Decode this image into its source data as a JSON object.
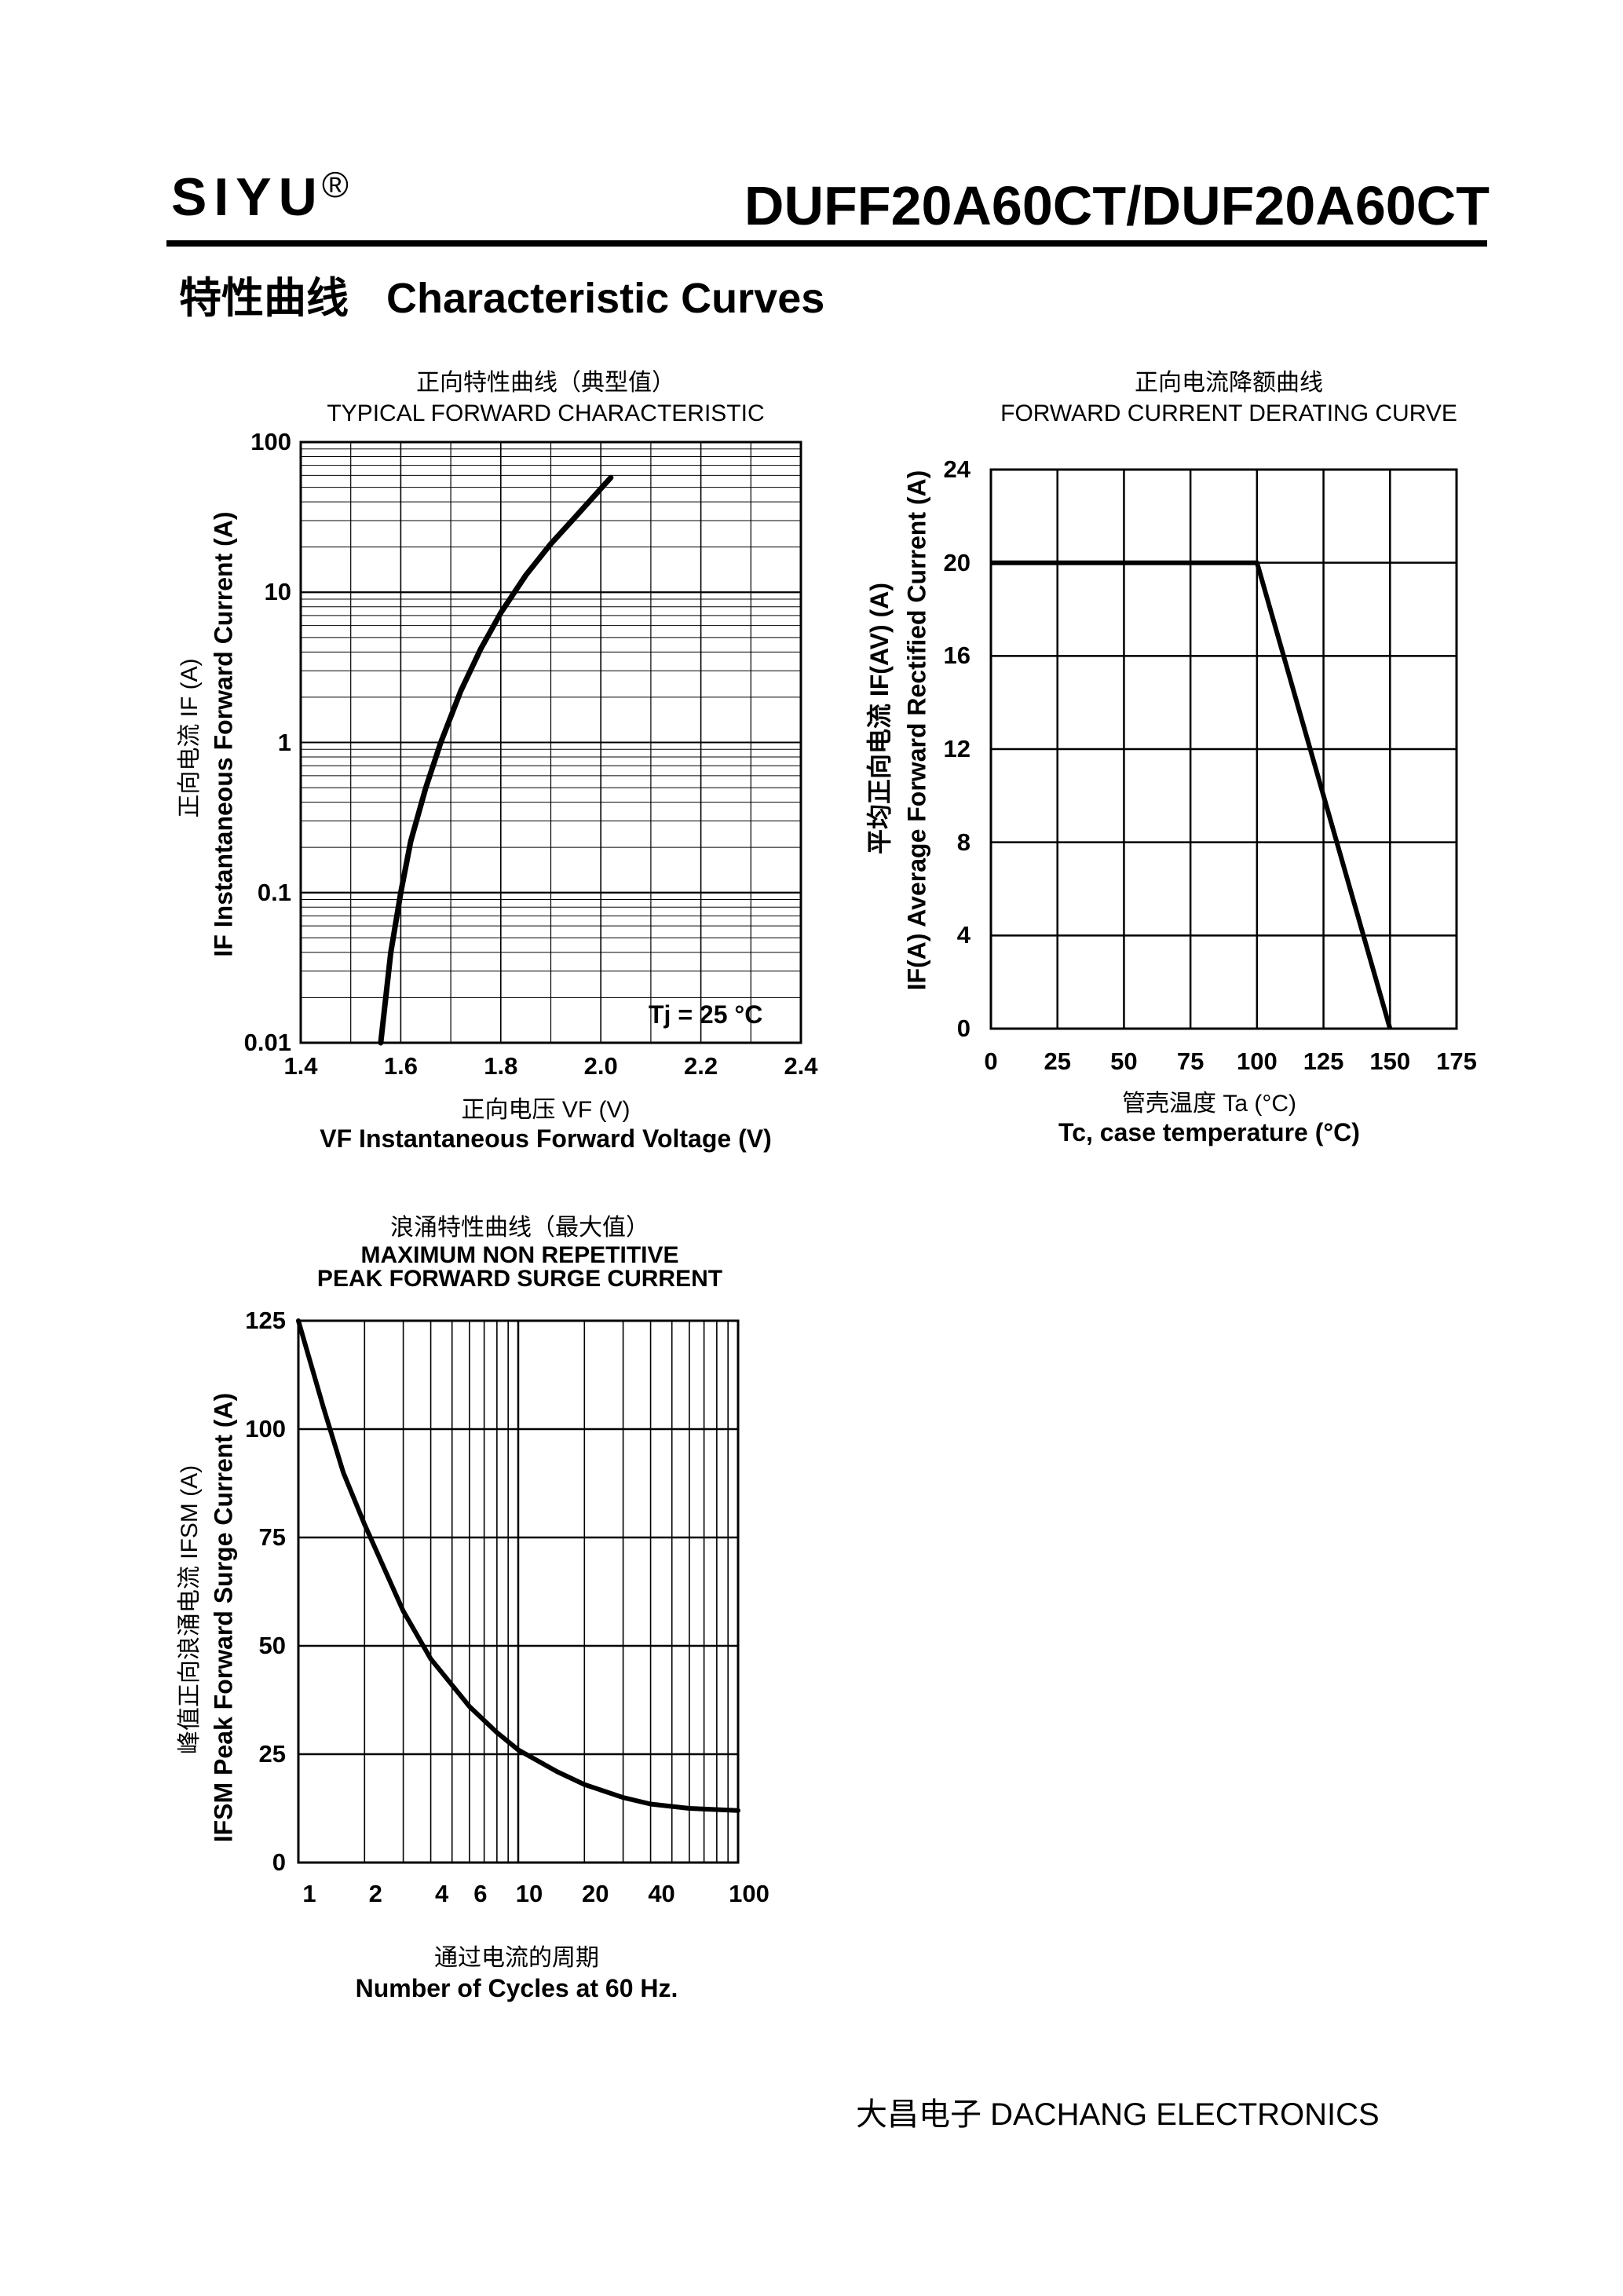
{
  "header": {
    "brand": "SIYU",
    "registered_mark": "®",
    "part_number": "DUFF20A60CT/DUF20A60CT"
  },
  "section": {
    "title_cn": "特性曲线",
    "title_en": "Characteristic Curves"
  },
  "footer": {
    "company": "大昌电子   DACHANG ELECTRONICS"
  },
  "chart_data": [
    {
      "type": "line",
      "title_cn": "正向特性曲线（典型值）",
      "title": "TYPICAL FORWARD CHARACTERISTIC",
      "xlabel_cn": "正向电压   VF (V)",
      "xlabel": "VF  Instantaneous Forward Voltage (V)",
      "ylabel_cn": "正向电流   IF (A)",
      "ylabel": "IF Instantaneous Forward Current (A)",
      "y_scale": "log",
      "xlim": [
        1.4,
        2.4
      ],
      "ylim": [
        0.01,
        100
      ],
      "x_ticks": [
        "1.4",
        "1.6",
        "1.8",
        "2.0",
        "2.2",
        "2.4"
      ],
      "y_ticks": [
        "0.01",
        "0.1",
        "1",
        "10",
        "100"
      ],
      "annotation": "Tj = 25 °C",
      "grid": true,
      "series": [
        {
          "x": [
            1.56,
            1.58,
            1.6,
            1.62,
            1.65,
            1.68,
            1.72,
            1.76,
            1.8,
            1.85,
            1.9,
            1.95,
            2.02
          ],
          "y": [
            0.01,
            0.04,
            0.1,
            0.22,
            0.5,
            1.0,
            2.2,
            4.2,
            7.3,
            13,
            21,
            32,
            58
          ]
        }
      ]
    },
    {
      "type": "line",
      "title_cn": "正向电流降额曲线",
      "title": "FORWARD CURRENT DERATING CURVE",
      "xlabel_cn": "管壳温度  Ta (°C)",
      "xlabel": "Tc, case  temperature (°C)",
      "ylabel_cn": "平均正向电流    IF(AV)  (A)",
      "ylabel": "IF(A)  Average Forward Rectified Current (A)",
      "xlim": [
        0,
        175
      ],
      "ylim": [
        0,
        24
      ],
      "x_ticks": [
        "0",
        "25",
        "50",
        "75",
        "100",
        "125",
        "150",
        "175"
      ],
      "y_ticks": [
        "0",
        "4",
        "8",
        "12",
        "16",
        "20",
        "24"
      ],
      "grid": true,
      "series": [
        {
          "x": [
            0,
            100,
            150
          ],
          "y": [
            20,
            20,
            0
          ]
        }
      ]
    },
    {
      "type": "line",
      "title_cn": "浪涌特性曲线（最大值）",
      "title": "MAXIMUM NON REPETITIVE",
      "subtitle": "PEAK FORWARD SURGE CURRENT",
      "xlabel_cn": "通过电流的周期",
      "xlabel": "Number  of  Cycles at 60 Hz.",
      "ylabel_cn": "峰值正向浪涌电流  IFSM (A)",
      "ylabel": "IFSM  Peak Forward Surge Current (A)",
      "x_scale": "log",
      "xlim": [
        1,
        100
      ],
      "ylim": [
        0,
        125
      ],
      "x_ticks": [
        "1",
        "2",
        "4",
        "6",
        "10",
        "20",
        "40",
        "100"
      ],
      "y_ticks": [
        "0",
        "25",
        "50",
        "75",
        "100",
        "125"
      ],
      "grid": true,
      "series": [
        {
          "x": [
            1,
            1.3,
            1.6,
            2,
            3,
            4,
            6,
            8,
            10,
            15,
            20,
            30,
            40,
            60,
            100
          ],
          "y": [
            125,
            105,
            90,
            78,
            58,
            47,
            36,
            30,
            26,
            21,
            18,
            15,
            13.5,
            12.5,
            12
          ]
        }
      ]
    }
  ]
}
